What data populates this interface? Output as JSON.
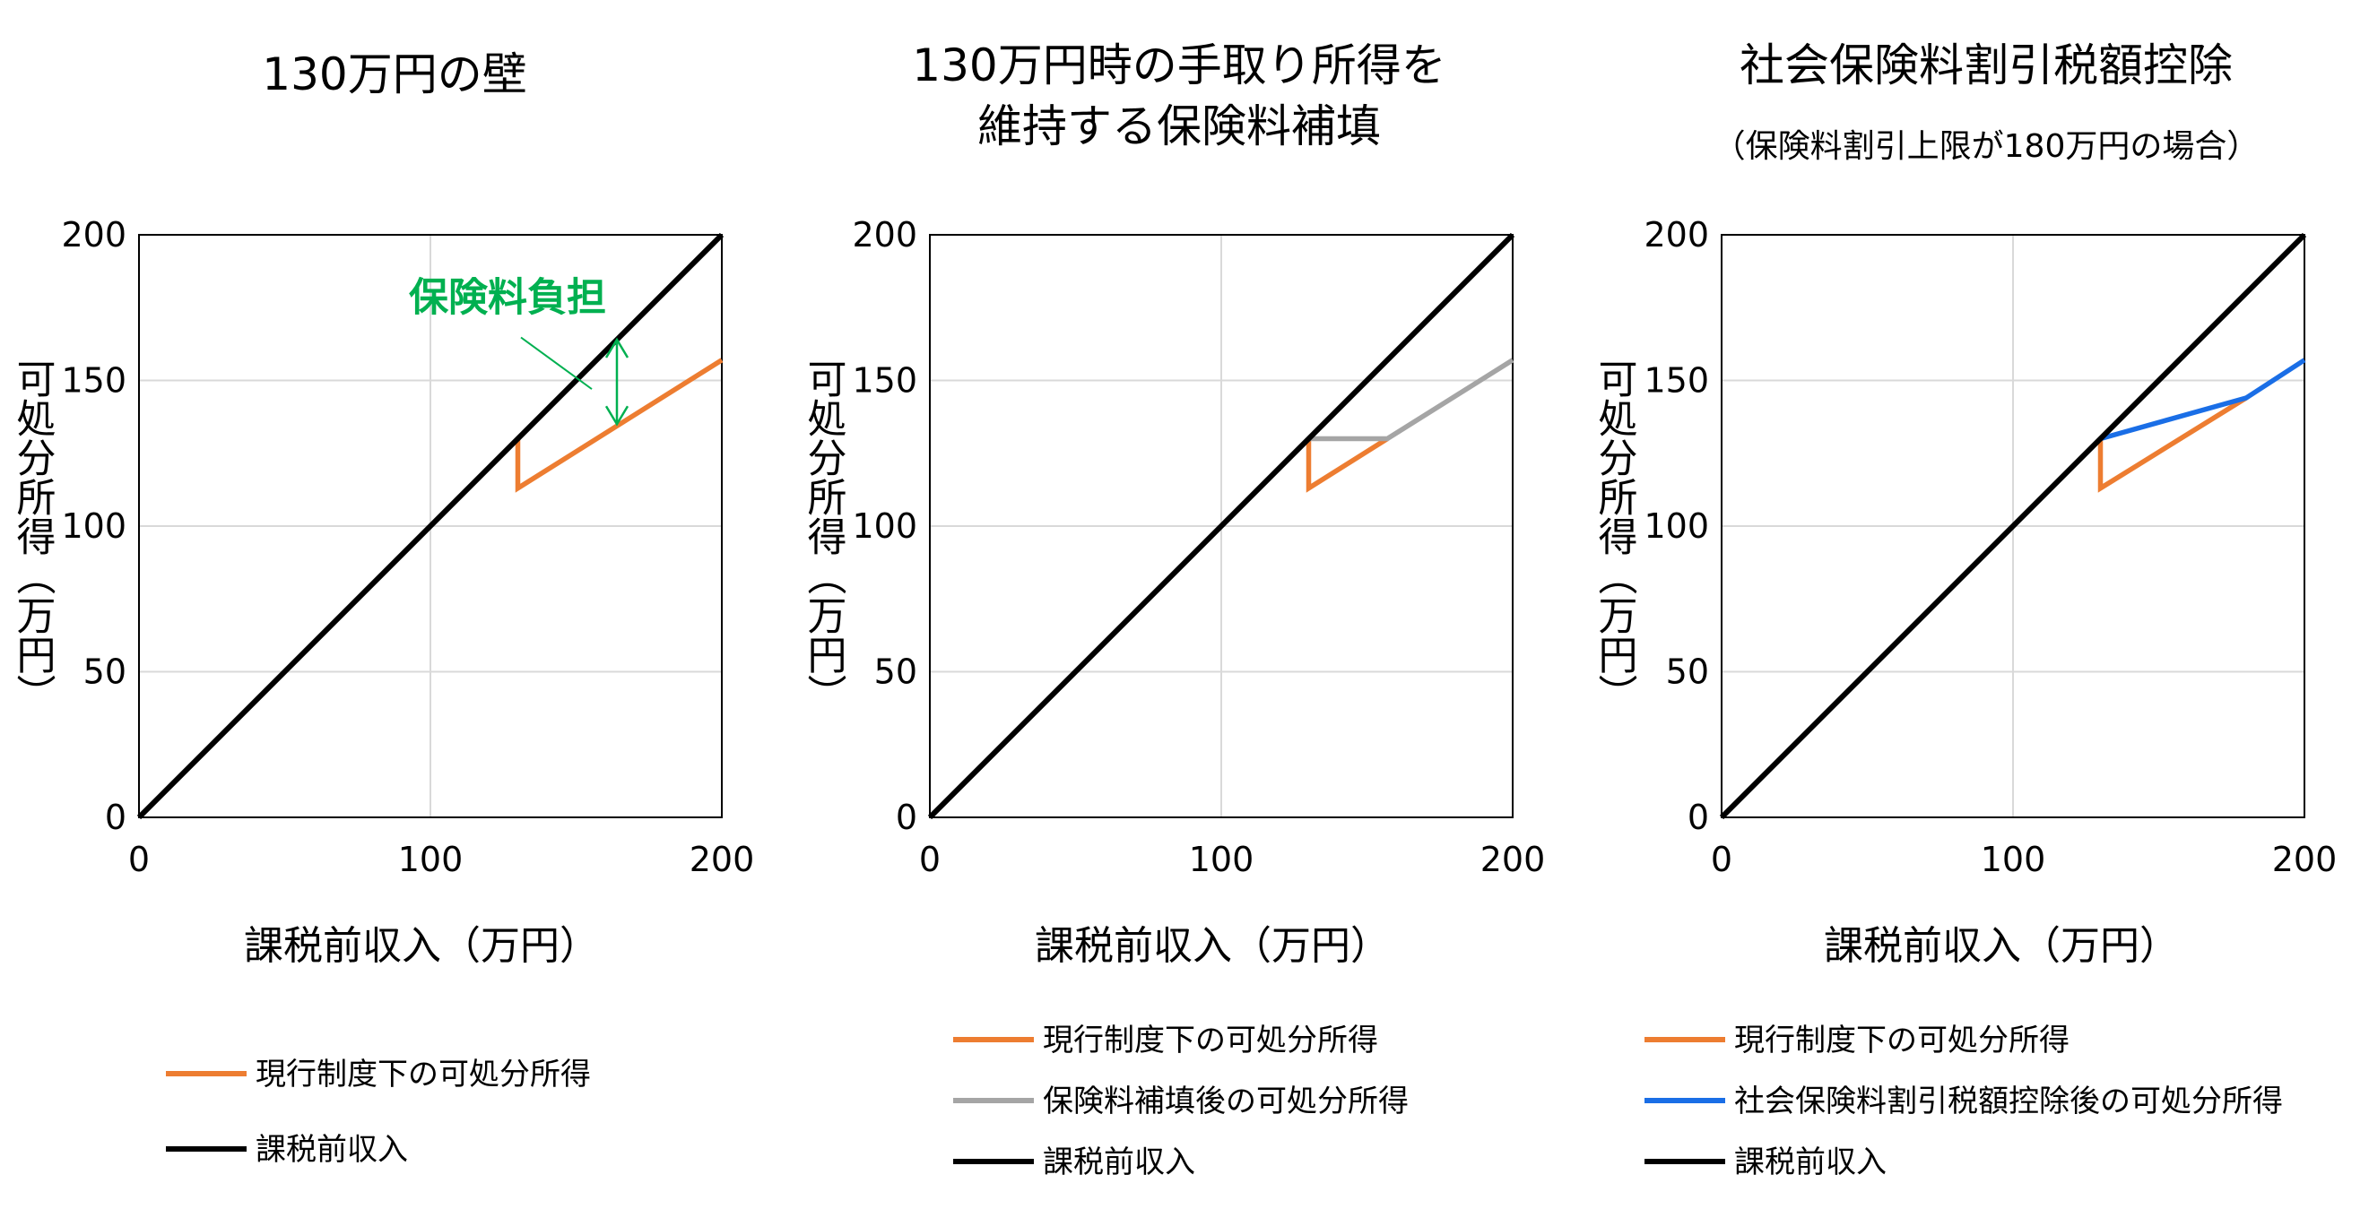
{
  "chart_data": [
    {
      "type": "line",
      "title": "130万円の壁",
      "subtitle": "",
      "xlabel": "課税前収入（万円）",
      "ylabel": "可処分所得（万円）",
      "xlim": [
        0,
        200
      ],
      "ylim": [
        0,
        200
      ],
      "x_ticks": [
        "0",
        "100",
        "200"
      ],
      "y_ticks": [
        "0",
        "50",
        "100",
        "150",
        "200"
      ],
      "grid": true,
      "annotation": {
        "text": "保険料負担",
        "color": "#00b050",
        "arrow_x": 164,
        "arrow_y_top": 164,
        "arrow_y_bottom": 135,
        "label_x": 108,
        "label_y": 174
      },
      "series": [
        {
          "name": "現行制度下の可処分所得",
          "color": "#ed7d31",
          "x": [
            130,
            130,
            200
          ],
          "y": [
            130,
            113,
            157
          ]
        },
        {
          "name": "課税前収入",
          "color": "#000000",
          "x": [
            0,
            200
          ],
          "y": [
            0,
            200
          ]
        }
      ],
      "legend": [
        "現行制度下の可処分所得",
        "課税前収入"
      ],
      "legend_position": "bottom"
    },
    {
      "type": "line",
      "title": "130万円時の手取り所得を",
      "title_line2": "維持する保険料補填",
      "subtitle": "",
      "xlabel": "課税前収入（万円）",
      "ylabel": "可処分所得（万円）",
      "xlim": [
        0,
        200
      ],
      "ylim": [
        0,
        200
      ],
      "x_ticks": [
        "0",
        "100",
        "200"
      ],
      "y_ticks": [
        "0",
        "50",
        "100",
        "150",
        "200"
      ],
      "grid": true,
      "series": [
        {
          "name": "現行制度下の可処分所得",
          "color": "#ed7d31",
          "x": [
            130,
            130,
            157
          ],
          "y": [
            130,
            113,
            130
          ]
        },
        {
          "name": "保険料補填後の可処分所得",
          "color": "#a5a5a5",
          "x": [
            130,
            157,
            200
          ],
          "y": [
            130,
            130,
            157
          ]
        },
        {
          "name": "課税前収入",
          "color": "#000000",
          "x": [
            0,
            200
          ],
          "y": [
            0,
            200
          ]
        }
      ],
      "legend": [
        "現行制度下の可処分所得",
        "保険料補填後の可処分所得",
        "課税前収入"
      ],
      "legend_position": "bottom"
    },
    {
      "type": "line",
      "title": "社会保険料割引税額控除",
      "subtitle": "（保険料割引上限が180万円の場合）",
      "xlabel": "課税前収入（万円）",
      "ylabel": "可処分所得（万円）",
      "xlim": [
        0,
        200
      ],
      "ylim": [
        0,
        200
      ],
      "x_ticks": [
        "0",
        "100",
        "200"
      ],
      "y_ticks": [
        "0",
        "50",
        "100",
        "150",
        "200"
      ],
      "grid": true,
      "series": [
        {
          "name": "現行制度下の可処分所得",
          "color": "#ed7d31",
          "x": [
            130,
            130,
            180
          ],
          "y": [
            130,
            113,
            144
          ]
        },
        {
          "name": "社会保険料割引税額控除後の可処分所得",
          "color": "#1a6ee6",
          "x": [
            130,
            180,
            200
          ],
          "y": [
            130,
            144,
            157
          ]
        },
        {
          "name": "課税前収入",
          "color": "#000000",
          "x": [
            0,
            200
          ],
          "y": [
            0,
            200
          ]
        }
      ],
      "legend": [
        "現行制度下の可処分所得",
        "社会保険料割引税額控除後の可処分所得",
        "課税前収入"
      ],
      "legend_position": "bottom"
    }
  ]
}
